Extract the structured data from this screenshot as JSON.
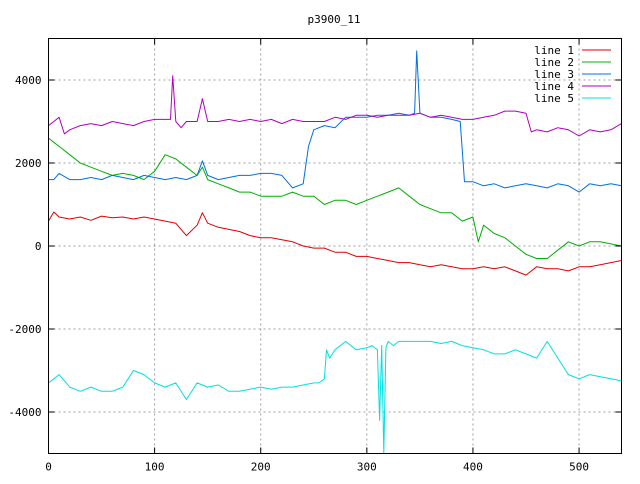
{
  "chart_data": {
    "type": "line",
    "title": "p3900_11",
    "xlabel": "",
    "ylabel": "",
    "xlim": [
      0,
      540
    ],
    "ylim": [
      -5000,
      5000
    ],
    "x_ticks": [
      0,
      100,
      200,
      300,
      400,
      500
    ],
    "y_ticks": [
      -4000,
      -2000,
      0,
      2000,
      4000
    ],
    "grid": true,
    "legend_position": "top-right",
    "series": [
      {
        "name": "line 1",
        "color": "#e00000",
        "x": [
          0,
          5,
          10,
          20,
          30,
          40,
          50,
          60,
          70,
          80,
          90,
          100,
          110,
          120,
          125,
          130,
          140,
          145,
          150,
          160,
          170,
          180,
          190,
          200,
          210,
          220,
          230,
          240,
          250,
          260,
          270,
          280,
          290,
          300,
          310,
          320,
          330,
          340,
          350,
          360,
          370,
          380,
          390,
          400,
          410,
          420,
          430,
          440,
          450,
          460,
          470,
          480,
          490,
          500,
          510,
          520,
          530,
          540
        ],
        "y": [
          600,
          820,
          700,
          650,
          700,
          620,
          720,
          680,
          700,
          650,
          700,
          650,
          600,
          550,
          400,
          250,
          500,
          800,
          550,
          450,
          400,
          350,
          250,
          200,
          200,
          150,
          100,
          0,
          -50,
          -50,
          -150,
          -150,
          -250,
          -250,
          -300,
          -350,
          -400,
          -400,
          -450,
          -500,
          -450,
          -500,
          -550,
          -550,
          -500,
          -550,
          -500,
          -600,
          -700,
          -500,
          -550,
          -550,
          -600,
          -500,
          -500,
          -450,
          -400,
          -350
        ]
      },
      {
        "name": "line 2",
        "color": "#00b000",
        "x": [
          0,
          5,
          10,
          20,
          30,
          40,
          50,
          60,
          70,
          80,
          90,
          100,
          110,
          120,
          130,
          140,
          145,
          150,
          160,
          170,
          180,
          190,
          200,
          210,
          220,
          230,
          240,
          250,
          260,
          270,
          280,
          290,
          300,
          310,
          320,
          330,
          340,
          350,
          360,
          370,
          380,
          390,
          400,
          405,
          410,
          420,
          430,
          440,
          450,
          460,
          470,
          480,
          490,
          500,
          510,
          520,
          530,
          540
        ],
        "y": [
          2600,
          2500,
          2400,
          2200,
          2000,
          1900,
          1800,
          1700,
          1750,
          1700,
          1600,
          1800,
          2200,
          2100,
          1900,
          1700,
          1900,
          1600,
          1500,
          1400,
          1300,
          1300,
          1200,
          1200,
          1200,
          1300,
          1200,
          1200,
          1000,
          1100,
          1100,
          1000,
          1100,
          1200,
          1300,
          1400,
          1200,
          1000,
          900,
          800,
          800,
          600,
          700,
          100,
          500,
          300,
          200,
          0,
          -200,
          -300,
          -300,
          -100,
          100,
          0,
          100,
          100,
          50,
          0
        ]
      },
      {
        "name": "line 3",
        "color": "#0070e0",
        "x": [
          0,
          5,
          10,
          20,
          30,
          40,
          50,
          60,
          70,
          80,
          90,
          100,
          110,
          120,
          130,
          140,
          145,
          150,
          160,
          170,
          180,
          190,
          200,
          210,
          220,
          230,
          240,
          245,
          250,
          260,
          270,
          280,
          290,
          300,
          310,
          320,
          330,
          340,
          345,
          347,
          350,
          360,
          370,
          380,
          388,
          392,
          400,
          410,
          420,
          430,
          440,
          450,
          460,
          470,
          480,
          490,
          500,
          510,
          520,
          530,
          540
        ],
        "y": [
          1600,
          1600,
          1750,
          1600,
          1600,
          1650,
          1600,
          1700,
          1650,
          1600,
          1700,
          1650,
          1600,
          1650,
          1600,
          1700,
          2050,
          1700,
          1600,
          1650,
          1700,
          1700,
          1750,
          1750,
          1700,
          1400,
          1500,
          2400,
          2800,
          2900,
          2850,
          3100,
          3100,
          3100,
          3150,
          3150,
          3200,
          3150,
          3200,
          4700,
          3200,
          3100,
          3100,
          3050,
          3000,
          1550,
          1550,
          1450,
          1500,
          1400,
          1450,
          1500,
          1450,
          1400,
          1500,
          1450,
          1300,
          1500,
          1450,
          1500,
          1450
        ]
      },
      {
        "name": "line 4",
        "color": "#b000c0",
        "x": [
          0,
          5,
          10,
          15,
          20,
          30,
          40,
          50,
          60,
          70,
          80,
          90,
          100,
          110,
          115,
          117,
          120,
          125,
          130,
          140,
          145,
          150,
          160,
          170,
          180,
          190,
          200,
          210,
          220,
          230,
          240,
          250,
          260,
          270,
          280,
          290,
          300,
          310,
          320,
          330,
          340,
          350,
          360,
          370,
          380,
          390,
          400,
          410,
          420,
          430,
          440,
          450,
          455,
          460,
          470,
          480,
          490,
          500,
          510,
          520,
          530,
          540
        ],
        "y": [
          2900,
          3000,
          3100,
          2700,
          2800,
          2900,
          2950,
          2900,
          3000,
          2950,
          2900,
          3000,
          3050,
          3050,
          3050,
          4100,
          3000,
          2850,
          3000,
          3000,
          3550,
          3000,
          3000,
          3050,
          3000,
          3050,
          3000,
          3050,
          2950,
          3050,
          3000,
          3000,
          3000,
          3100,
          3050,
          3150,
          3150,
          3100,
          3150,
          3150,
          3150,
          3200,
          3100,
          3150,
          3100,
          3050,
          3050,
          3100,
          3150,
          3250,
          3250,
          3200,
          2750,
          2800,
          2750,
          2850,
          2800,
          2650,
          2800,
          2750,
          2800,
          2950
        ]
      },
      {
        "name": "line 5",
        "color": "#00e0e0",
        "x": [
          0,
          5,
          10,
          20,
          30,
          40,
          50,
          60,
          70,
          80,
          90,
          100,
          110,
          120,
          130,
          140,
          150,
          160,
          170,
          180,
          190,
          200,
          210,
          220,
          230,
          240,
          250,
          255,
          260,
          262,
          265,
          270,
          280,
          290,
          300,
          305,
          310,
          312,
          314,
          316,
          318,
          320,
          325,
          330,
          340,
          350,
          360,
          370,
          380,
          390,
          400,
          410,
          420,
          430,
          440,
          450,
          460,
          470,
          480,
          490,
          500,
          510,
          520,
          530,
          540
        ],
        "y": [
          -3300,
          -3200,
          -3100,
          -3400,
          -3500,
          -3400,
          -3500,
          -3500,
          -3400,
          -3000,
          -3100,
          -3300,
          -3400,
          -3300,
          -3700,
          -3300,
          -3400,
          -3350,
          -3500,
          -3500,
          -3450,
          -3400,
          -3450,
          -3400,
          -3400,
          -3350,
          -3300,
          -3300,
          -3200,
          -2500,
          -2700,
          -2500,
          -2300,
          -2500,
          -2450,
          -2400,
          -2500,
          -4200,
          -2400,
          -5000,
          -2450,
          -2300,
          -2400,
          -2300,
          -2300,
          -2300,
          -2300,
          -2350,
          -2300,
          -2400,
          -2450,
          -2500,
          -2600,
          -2600,
          -2500,
          -2600,
          -2700,
          -2300,
          -2700,
          -3100,
          -3200,
          -3100,
          -3150,
          -3200,
          -3250
        ]
      }
    ]
  }
}
